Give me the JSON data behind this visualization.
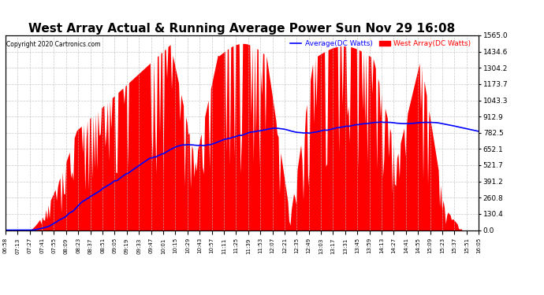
{
  "title": "West Array Actual & Running Average Power Sun Nov 29 16:08",
  "copyright": "Copyright 2020 Cartronics.com",
  "legend_avg": "Average(DC Watts)",
  "legend_west": "West Array(DC Watts)",
  "legend_avg_color": "blue",
  "legend_west_color": "red",
  "ylabel_right_values": [
    0.0,
    130.4,
    260.8,
    391.2,
    521.7,
    652.1,
    782.5,
    912.9,
    1043.3,
    1173.7,
    1304.2,
    1434.6,
    1565.0
  ],
  "ymax": 1565.0,
  "ymin": 0.0,
  "background_color": "#ffffff",
  "fill_color": "red",
  "avg_line_color": "blue",
  "grid_color": "#bbbbbb",
  "title_color": "#000000",
  "title_fontsize": 11,
  "x_tick_labels": [
    "06:58",
    "07:13",
    "07:27",
    "07:41",
    "07:55",
    "08:09",
    "08:23",
    "08:37",
    "08:51",
    "09:05",
    "09:19",
    "09:33",
    "09:47",
    "10:01",
    "10:15",
    "10:29",
    "10:43",
    "10:57",
    "11:11",
    "11:25",
    "11:39",
    "11:53",
    "12:07",
    "12:21",
    "12:35",
    "12:49",
    "13:03",
    "13:17",
    "13:31",
    "13:45",
    "13:59",
    "14:13",
    "14:27",
    "14:41",
    "14:55",
    "15:09",
    "15:23",
    "15:37",
    "15:51",
    "16:05"
  ]
}
